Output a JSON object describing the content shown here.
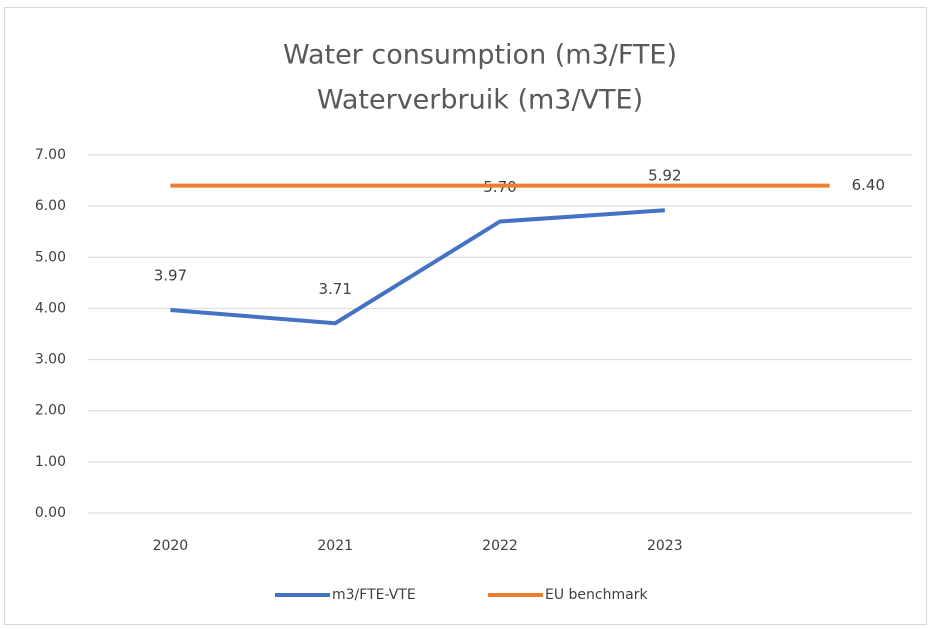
{
  "chart_data": {
    "type": "line",
    "title": "Water consumption (m3/FTE)",
    "subtitle": "Waterverbruik (m3/VTE)",
    "categories": [
      "2020",
      "2021",
      "2022",
      "2023",
      null
    ],
    "series": [
      {
        "name": "m3/FTE-VTE",
        "color": "#4472c4",
        "values": [
          3.97,
          3.71,
          5.7,
          5.92,
          null
        ],
        "value_labels": [
          "3.97",
          "3.71",
          "5.70",
          "5.92",
          null
        ]
      },
      {
        "name": "EU benchmark",
        "color": "#ed7d31",
        "values": [
          6.4,
          6.4,
          6.4,
          6.4,
          6.4
        ],
        "value_labels": [
          null,
          null,
          null,
          null,
          "6.40"
        ]
      }
    ],
    "ylim": [
      0,
      7
    ],
    "yticks": [
      {
        "value": 0,
        "label": "0.00"
      },
      {
        "value": 1,
        "label": "1.00"
      },
      {
        "value": 2,
        "label": "2.00"
      },
      {
        "value": 3,
        "label": "3.00"
      },
      {
        "value": 4,
        "label": "4.00"
      },
      {
        "value": 5,
        "label": "5.00"
      },
      {
        "value": 6,
        "label": "6.00"
      },
      {
        "value": 7,
        "label": "7.00"
      }
    ],
    "grid": true,
    "legend": "bottom"
  }
}
